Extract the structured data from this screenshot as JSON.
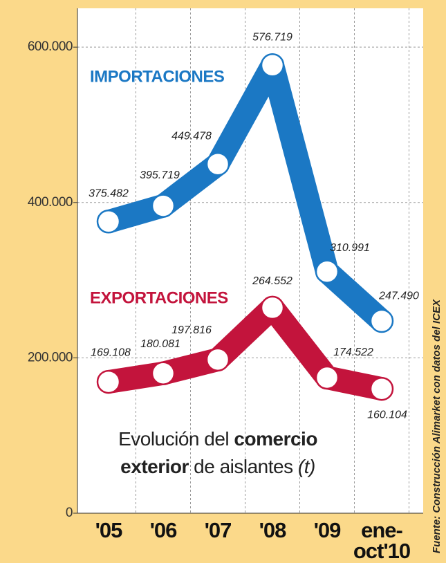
{
  "chart_data": {
    "type": "line",
    "categories": [
      "'05",
      "'06",
      "'07",
      "'08",
      "'09",
      "ene-oct'10"
    ],
    "series": [
      {
        "name": "IMPORTACIONES",
        "color": "#1b78c4",
        "values": [
          375482,
          395719,
          449478,
          576719,
          310991,
          247490
        ],
        "value_labels": [
          "375.482",
          "395.719",
          "449.478",
          "576.719",
          "310.991",
          "247.490"
        ]
      },
      {
        "name": "EXPORTACIONES",
        "color": "#c3143c",
        "values": [
          169108,
          180081,
          197816,
          264552,
          174522,
          160104
        ],
        "value_labels": [
          "169.108",
          "180.081",
          "197.816",
          "264.552",
          "174.522",
          "160.104"
        ]
      }
    ],
    "ylim": [
      0,
      650000
    ],
    "yticks": [
      0,
      {
        "value": 200000,
        "label": "200.000"
      },
      {
        "value": 400000,
        "label": "400.000"
      },
      {
        "value": 600000,
        "label": "600.000"
      }
    ],
    "grid": true,
    "annotation": [
      [
        "Evolución del ",
        "comercio"
      ],
      [
        "exterior",
        " de aislantes ",
        "(t)"
      ]
    ],
    "source": "Fuente: Construcción Alimarket con datos del ICEX"
  }
}
